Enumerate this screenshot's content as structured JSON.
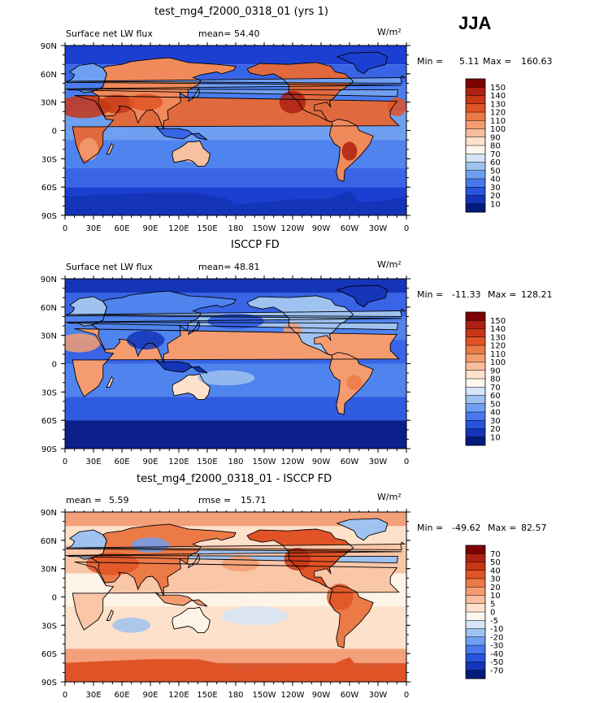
{
  "season": "JJA",
  "panels": [
    {
      "title": "test_mg4_f2000_0318_01 (yrs 1)",
      "left_label": "Surface net LW flux",
      "stat1_label": "mean=",
      "stat1_value": "54.40",
      "stat2_label": "",
      "stat2_value": "",
      "units": "W/m²",
      "min_label": "Min =",
      "min_value": "5.11",
      "max_label": "Max =",
      "max_value": "160.63",
      "colorbar_labels": [
        "150",
        "140",
        "130",
        "120",
        "110",
        "100",
        "90",
        "80",
        "70",
        "60",
        "50",
        "40",
        "30",
        "20",
        "10"
      ],
      "colorbar_colors": [
        "#7f0000",
        "#ae2012",
        "#c83616",
        "#e05326",
        "#ec7a47",
        "#f49c70",
        "#f8bd9c",
        "#fde1cb",
        "#fdf6ec",
        "#d5e5f7",
        "#9fc2f0",
        "#6e9ff0",
        "#4779ed",
        "#2755e0",
        "#1435b8",
        "#001b7a"
      ]
    },
    {
      "title": "ISCCP FD",
      "left_label": "Surface net LW flux",
      "stat1_label": "mean=",
      "stat1_value": "48.81",
      "stat2_label": "",
      "stat2_value": "",
      "units": "W/m²",
      "min_label": "Min =",
      "min_value": "-11.33",
      "max_label": "Max =",
      "max_value": "128.21",
      "colorbar_labels": [
        "150",
        "140",
        "130",
        "120",
        "110",
        "100",
        "90",
        "80",
        "70",
        "60",
        "50",
        "40",
        "30",
        "20",
        "10"
      ],
      "colorbar_colors": [
        "#7f0000",
        "#ae2012",
        "#c83616",
        "#e05326",
        "#ec7a47",
        "#f49c70",
        "#f8bd9c",
        "#fde1cb",
        "#fdf6ec",
        "#d5e5f7",
        "#9fc2f0",
        "#6e9ff0",
        "#4779ed",
        "#2755e0",
        "#1435b8",
        "#001b7a"
      ]
    },
    {
      "title": "test_mg4_f2000_0318_01 - ISCCP FD",
      "left_label": "",
      "stat1_label": "mean =",
      "stat1_value": "5.59",
      "stat2_label": "rmse =",
      "stat2_value": "15.71",
      "units": "W/m²",
      "min_label": "Min =",
      "min_value": "-49.62",
      "max_label": "Max =",
      "max_value": "82.57",
      "colorbar_labels": [
        "70",
        "50",
        "40",
        "30",
        "20",
        "10",
        "5",
        "0",
        "-5",
        "-10",
        "-20",
        "-30",
        "-40",
        "-50",
        "-70"
      ],
      "colorbar_colors": [
        "#7f0000",
        "#ae2012",
        "#c83616",
        "#e05326",
        "#ec7a47",
        "#f49c70",
        "#f8bd9c",
        "#fde1cb",
        "#fdf6ec",
        "#d5e5f7",
        "#9fc2f0",
        "#6e9ff0",
        "#4779ed",
        "#2755e0",
        "#1435b8",
        "#001b7a"
      ]
    }
  ],
  "chart_data": [
    {
      "type": "heatmap",
      "title": "test_mg4_f2000_0318_01 (yrs 1)",
      "subtitle": "Surface net LW flux",
      "units": "W/m²",
      "mean": 54.4,
      "min": 5.11,
      "max": 160.63,
      "x_tick_labels": [
        "0",
        "30E",
        "60E",
        "90E",
        "120E",
        "150E",
        "180",
        "150W",
        "120W",
        "90W",
        "60W",
        "30W",
        "0"
      ],
      "y_tick_labels": [
        "90N",
        "60N",
        "30N",
        "0",
        "30S",
        "60S",
        "90S"
      ],
      "levels": [
        10,
        20,
        30,
        40,
        50,
        60,
        70,
        80,
        90,
        100,
        110,
        120,
        130,
        140,
        150
      ]
    },
    {
      "type": "heatmap",
      "title": "ISCCP FD",
      "subtitle": "Surface net LW flux",
      "units": "W/m²",
      "mean": 48.81,
      "min": -11.33,
      "max": 128.21,
      "x_tick_labels": [
        "0",
        "30E",
        "60E",
        "90E",
        "120E",
        "150E",
        "180",
        "150W",
        "120W",
        "90W",
        "60W",
        "30W",
        "0"
      ],
      "y_tick_labels": [
        "90N",
        "60N",
        "30N",
        "0",
        "30S",
        "60S",
        "90S"
      ],
      "levels": [
        10,
        20,
        30,
        40,
        50,
        60,
        70,
        80,
        90,
        100,
        110,
        120,
        130,
        140,
        150
      ]
    },
    {
      "type": "heatmap",
      "title": "test_mg4_f2000_0318_01 - ISCCP FD",
      "units": "W/m²",
      "mean": 5.59,
      "rmse": 15.71,
      "min": -49.62,
      "max": 82.57,
      "x_tick_labels": [
        "0",
        "30E",
        "60E",
        "90E",
        "120E",
        "150E",
        "180",
        "150W",
        "120W",
        "90W",
        "60W",
        "30W",
        "0"
      ],
      "y_tick_labels": [
        "90N",
        "60N",
        "30N",
        "0",
        "30S",
        "60S",
        "90S"
      ],
      "levels": [
        -70,
        -50,
        -40,
        -30,
        -20,
        -10,
        -5,
        0,
        5,
        10,
        20,
        30,
        40,
        50,
        70
      ]
    }
  ]
}
